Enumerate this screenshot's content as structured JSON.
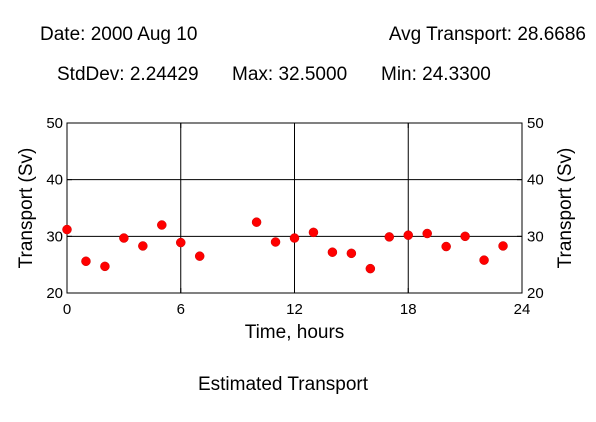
{
  "header": {
    "date": "Date: 2000 Aug 10",
    "avg": "Avg Transport: 28.6686",
    "stddev": "StdDev: 2.24429",
    "max": "Max: 32.5000",
    "min": "Min: 24.3300"
  },
  "caption": "Estimated Transport",
  "chart_data": {
    "type": "scatter",
    "title": "",
    "xlabel": "Time, hours",
    "ylabel": "Transport (Sv)",
    "xlim": [
      0,
      24
    ],
    "ylim": [
      20,
      50
    ],
    "xticks": [
      0,
      6,
      12,
      18,
      24
    ],
    "yticks": [
      20,
      30,
      40,
      50
    ],
    "grid": true,
    "marker_color": "#ff0000",
    "points": [
      {
        "x": 0,
        "y": 31.2
      },
      {
        "x": 1,
        "y": 25.6
      },
      {
        "x": 2,
        "y": 24.7
      },
      {
        "x": 3,
        "y": 29.7
      },
      {
        "x": 4,
        "y": 28.3
      },
      {
        "x": 5,
        "y": 32.0
      },
      {
        "x": 6,
        "y": 28.9
      },
      {
        "x": 7,
        "y": 26.5
      },
      {
        "x": 10,
        "y": 32.5
      },
      {
        "x": 11,
        "y": 29.0
      },
      {
        "x": 12,
        "y": 29.7
      },
      {
        "x": 13,
        "y": 30.7
      },
      {
        "x": 14,
        "y": 27.2
      },
      {
        "x": 15,
        "y": 27.0
      },
      {
        "x": 16,
        "y": 24.3
      },
      {
        "x": 17,
        "y": 29.9
      },
      {
        "x": 18,
        "y": 30.2
      },
      {
        "x": 19,
        "y": 30.5
      },
      {
        "x": 20,
        "y": 28.2
      },
      {
        "x": 21,
        "y": 30.0
      },
      {
        "x": 22,
        "y": 25.8
      },
      {
        "x": 23,
        "y": 28.3
      }
    ]
  }
}
